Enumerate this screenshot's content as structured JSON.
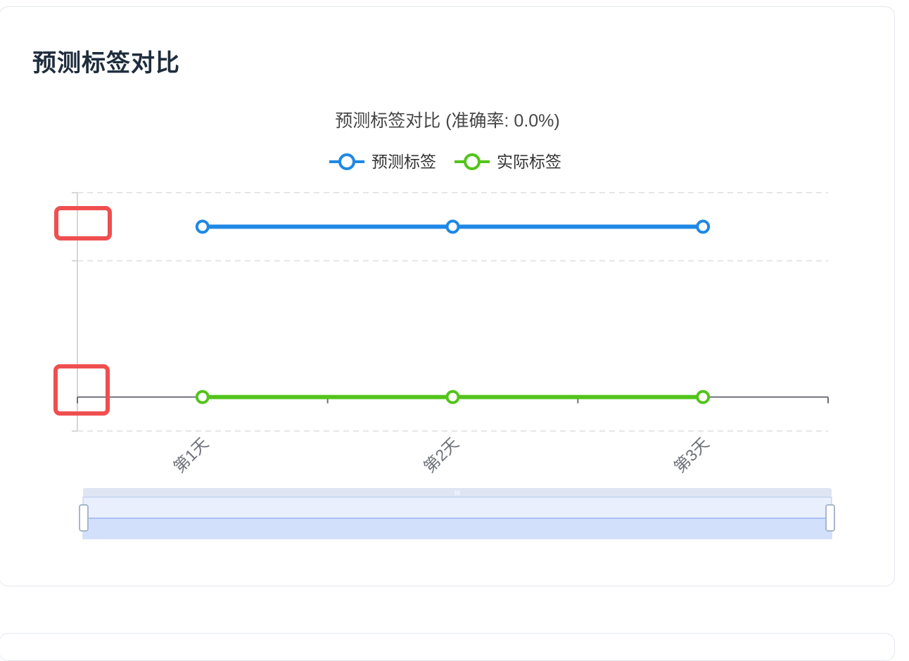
{
  "card": {
    "title": "预测标签对比"
  },
  "chart_data": {
    "type": "line",
    "title": "预测标签对比 (准确率: 0.0%)",
    "categories": [
      "第1天",
      "第2天",
      "第3天"
    ],
    "series": [
      {
        "name": "预测标签",
        "values": [
          1,
          1,
          1
        ],
        "color": "#1e88e5"
      },
      {
        "name": "实际标签",
        "values": [
          0,
          0,
          0
        ],
        "color": "#52c41a"
      }
    ],
    "ylim": [
      -0.2,
      1.2
    ],
    "grid": true,
    "legend_position": "top-center",
    "datazoom": {
      "start_percent": 0,
      "end_percent": 100
    }
  }
}
